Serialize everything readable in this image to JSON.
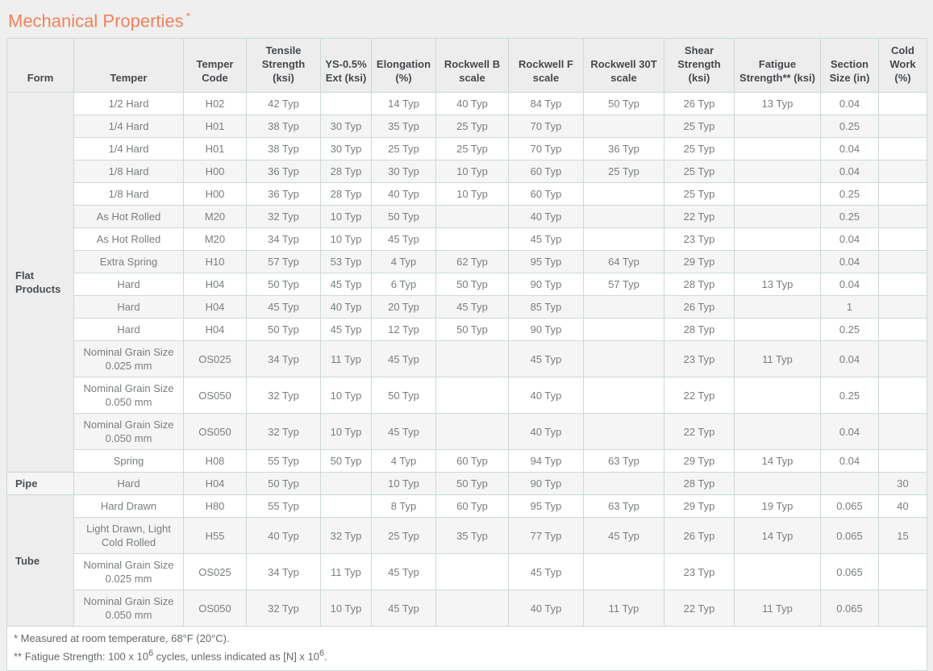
{
  "page": {
    "title": "Mechanical Properties",
    "title_superscript": "*",
    "accent_color": "#ef835d"
  },
  "table": {
    "columns": [
      "Form",
      "Temper",
      "Temper Code",
      "Tensile Strength (ksi)",
      "YS-0.5% Ext (ksi)",
      "Elongation (%)",
      "Rockwell B scale",
      "Rockwell F scale",
      "Rockwell 30T scale",
      "Shear Strength (ksi)",
      "Fatigue Strength** (ksi)",
      "Section Size (in)",
      "Cold Work (%)"
    ],
    "value_column_keys": [
      "tensile_strength",
      "ys_05_ext",
      "elongation",
      "rockwell_b",
      "rockwell_f",
      "rockwell_30t",
      "shear_strength",
      "fatigue_strength",
      "section_size",
      "cold_work"
    ],
    "groups": [
      {
        "form": "Flat Products",
        "rows": [
          {
            "temper": "1/2 Hard",
            "code": "H02",
            "values": [
              "42 Typ",
              "",
              "14 Typ",
              "40 Typ",
              "84 Typ",
              "50 Typ",
              "26 Typ",
              "13 Typ",
              "0.04",
              ""
            ]
          },
          {
            "temper": "1/4 Hard",
            "code": "H01",
            "values": [
              "38 Typ",
              "30 Typ",
              "35 Typ",
              "25 Typ",
              "70 Typ",
              "",
              "25 Typ",
              "",
              "0.25",
              ""
            ]
          },
          {
            "temper": "1/4 Hard",
            "code": "H01",
            "values": [
              "38 Typ",
              "30 Typ",
              "25 Typ",
              "25 Typ",
              "70 Typ",
              "36 Typ",
              "25 Typ",
              "",
              "0.04",
              ""
            ]
          },
          {
            "temper": "1/8 Hard",
            "code": "H00",
            "values": [
              "36 Typ",
              "28 Typ",
              "30 Typ",
              "10 Typ",
              "60 Typ",
              "25 Typ",
              "25 Typ",
              "",
              "0.04",
              ""
            ]
          },
          {
            "temper": "1/8 Hard",
            "code": "H00",
            "values": [
              "36 Typ",
              "28 Typ",
              "40 Typ",
              "10 Typ",
              "60 Typ",
              "",
              "25 Typ",
              "",
              "0.25",
              ""
            ]
          },
          {
            "temper": "As Hot Rolled",
            "code": "M20",
            "values": [
              "32 Typ",
              "10 Typ",
              "50 Typ",
              "",
              "40 Typ",
              "",
              "22 Typ",
              "",
              "0.25",
              ""
            ]
          },
          {
            "temper": "As Hot Rolled",
            "code": "M20",
            "values": [
              "34 Typ",
              "10 Typ",
              "45 Typ",
              "",
              "45 Typ",
              "",
              "23 Typ",
              "",
              "0.04",
              ""
            ]
          },
          {
            "temper": "Extra Spring",
            "code": "H10",
            "values": [
              "57 Typ",
              "53 Typ",
              "4 Typ",
              "62 Typ",
              "95 Typ",
              "64 Typ",
              "29 Typ",
              "",
              "0.04",
              ""
            ]
          },
          {
            "temper": "Hard",
            "code": "H04",
            "values": [
              "50 Typ",
              "45 Typ",
              "6 Typ",
              "50 Typ",
              "90 Typ",
              "57 Typ",
              "28 Typ",
              "13 Typ",
              "0.04",
              ""
            ]
          },
          {
            "temper": "Hard",
            "code": "H04",
            "values": [
              "45 Typ",
              "40 Typ",
              "20 Typ",
              "45 Typ",
              "85 Typ",
              "",
              "26 Typ",
              "",
              "1",
              ""
            ]
          },
          {
            "temper": "Hard",
            "code": "H04",
            "values": [
              "50 Typ",
              "45 Typ",
              "12 Typ",
              "50 Typ",
              "90 Typ",
              "",
              "28 Typ",
              "",
              "0.25",
              ""
            ]
          },
          {
            "temper": "Nominal Grain Size 0.025 mm",
            "code": "OS025",
            "values": [
              "34 Typ",
              "11 Typ",
              "45 Typ",
              "",
              "45 Typ",
              "",
              "23 Typ",
              "11 Typ",
              "0.04",
              ""
            ]
          },
          {
            "temper": "Nominal Grain Size 0.050 mm",
            "code": "OS050",
            "values": [
              "32 Typ",
              "10 Typ",
              "50 Typ",
              "",
              "40 Typ",
              "",
              "22 Typ",
              "",
              "0.25",
              ""
            ]
          },
          {
            "temper": "Nominal Grain Size 0.050 mm",
            "code": "OS050",
            "values": [
              "32 Typ",
              "10 Typ",
              "45 Typ",
              "",
              "40 Typ",
              "",
              "22 Typ",
              "",
              "0.04",
              ""
            ]
          },
          {
            "temper": "Spring",
            "code": "H08",
            "values": [
              "55 Typ",
              "50 Typ",
              "4 Typ",
              "60 Typ",
              "94 Typ",
              "63 Typ",
              "29 Typ",
              "14 Typ",
              "0.04",
              ""
            ]
          }
        ]
      },
      {
        "form": "Pipe",
        "rows": [
          {
            "temper": "Hard",
            "code": "H04",
            "values": [
              "50 Typ",
              "",
              "10 Typ",
              "50 Typ",
              "90 Typ",
              "",
              "28 Typ",
              "",
              "",
              "30"
            ]
          }
        ]
      },
      {
        "form": "Tube",
        "rows": [
          {
            "temper": "Hard Drawn",
            "code": "H80",
            "values": [
              "55 Typ",
              "",
              "8 Typ",
              "60 Typ",
              "95 Typ",
              "63 Typ",
              "29 Typ",
              "19 Typ",
              "0.065",
              "40"
            ]
          },
          {
            "temper": "Light Drawn, Light Cold Rolled",
            "code": "H55",
            "values": [
              "40 Typ",
              "32 Typ",
              "25 Typ",
              "35 Typ",
              "77 Typ",
              "45 Typ",
              "26 Typ",
              "14 Typ",
              "0.065",
              "15"
            ]
          },
          {
            "temper": "Nominal Grain Size 0.025 mm",
            "code": "OS025",
            "values": [
              "34 Typ",
              "11 Typ",
              "45 Typ",
              "",
              "45 Typ",
              "",
              "23 Typ",
              "",
              "0.065",
              ""
            ]
          },
          {
            "temper": "Nominal Grain Size 0.050 mm",
            "code": "OS050",
            "values": [
              "32 Typ",
              "10 Typ",
              "45 Typ",
              "",
              "40 Typ",
              "11 Typ",
              "22 Typ",
              "11 Typ",
              "0.065",
              ""
            ]
          }
        ]
      }
    ],
    "footnote1": "* Measured at room temperature, 68°F (20°C).",
    "footnote2_pre": "** Fatigue Strength: 100 x 10",
    "footnote2_sup1": "6",
    "footnote2_mid": " cycles, unless indicated as [N] x 10",
    "footnote2_sup2": "6",
    "footnote2_end": "."
  }
}
